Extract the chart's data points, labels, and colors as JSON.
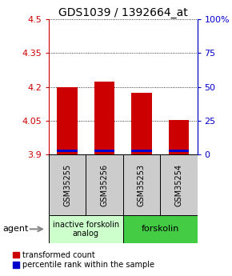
{
  "title": "GDS1039 / 1392664_at",
  "samples": [
    "GSM35255",
    "GSM35256",
    "GSM35253",
    "GSM35254"
  ],
  "red_values": [
    4.2,
    4.225,
    4.175,
    4.052
  ],
  "blue_bottoms": [
    3.91,
    3.91,
    3.91,
    3.91
  ],
  "blue_tops": [
    3.922,
    3.922,
    3.922,
    3.922
  ],
  "ylim_left": [
    3.9,
    4.5
  ],
  "ylim_right": [
    0,
    100
  ],
  "yticks_left": [
    3.9,
    4.05,
    4.2,
    4.35,
    4.5
  ],
  "yticks_right": [
    0,
    25,
    50,
    75,
    100
  ],
  "ytick_labels_left": [
    "3.9",
    "4.05",
    "4.2",
    "4.35",
    "4.5"
  ],
  "ytick_labels_right": [
    "0",
    "25",
    "50",
    "75",
    "100%"
  ],
  "bar_bottom": 3.9,
  "bar_width": 0.55,
  "red_color": "#cc0000",
  "blue_color": "#0000cc",
  "group1_label": "inactive forskolin\nanalog",
  "group2_label": "forskolin",
  "group1_color": "#ccffcc",
  "group2_color": "#44cc44",
  "agent_label": "agent",
  "legend_red": "transformed count",
  "legend_blue": "percentile rank within the sample",
  "label_area_color": "#cccccc",
  "left_axis_color": "#cc0000",
  "right_axis_color": "#0000cc",
  "title_fontsize": 10,
  "tick_fontsize": 8,
  "legend_fontsize": 7,
  "sample_fontsize": 7,
  "group_fontsize": 7,
  "agent_fontsize": 8
}
